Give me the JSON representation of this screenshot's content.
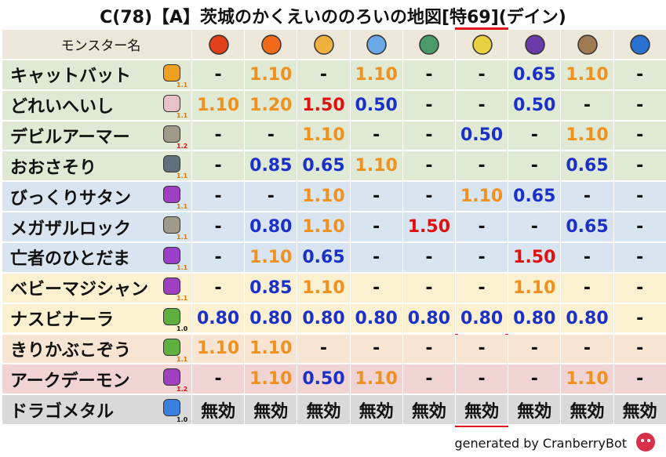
{
  "header": {
    "title": "C(78)【A】茨城のかくえいののろいの地図[特69](デイン)"
  },
  "table": {
    "name_header": "モンスター名",
    "rows": [
      {
        "name": "キャットバット",
        "level": "1.1",
        "cells": [
          "-",
          "1.10",
          "-",
          "1.10",
          "-",
          "-",
          "0.65",
          "1.10",
          "-"
        ]
      },
      {
        "name": "どれいへいし",
        "level": "1.1",
        "cells": [
          "1.10",
          "1.20",
          "1.50",
          "0.50",
          "-",
          "-",
          "0.50",
          "-",
          "-"
        ]
      },
      {
        "name": "デビルアーマー",
        "level": "1.2",
        "cells": [
          "-",
          "-",
          "1.10",
          "-",
          "-",
          "0.50",
          "-",
          "1.10",
          "-"
        ]
      },
      {
        "name": "おおさそり",
        "level": "1.1",
        "cells": [
          "-",
          "0.85",
          "0.65",
          "1.10",
          "-",
          "-",
          "-",
          "0.65",
          "-"
        ]
      },
      {
        "name": "びっくりサタン",
        "level": "1.1",
        "cells": [
          "-",
          "-",
          "1.10",
          "-",
          "-",
          "1.10",
          "0.65",
          "-",
          "-"
        ]
      },
      {
        "name": "メガザルロック",
        "level": "1.1",
        "cells": [
          "-",
          "0.80",
          "1.10",
          "-",
          "1.50",
          "-",
          "-",
          "0.65",
          "-"
        ]
      },
      {
        "name": "亡者のひとだま",
        "level": "1.1",
        "cells": [
          "-",
          "1.10",
          "0.65",
          "-",
          "-",
          "-",
          "1.50",
          "-",
          "-"
        ]
      },
      {
        "name": "ベビーマジシャン",
        "level": "1.1",
        "cells": [
          "-",
          "0.85",
          "1.10",
          "-",
          "-",
          "-",
          "1.10",
          "-",
          "-"
        ]
      },
      {
        "name": "ナスビナーラ",
        "level": "1.0",
        "cells": [
          "0.80",
          "0.80",
          "0.80",
          "0.80",
          "0.80",
          "0.80",
          "0.80",
          "0.80",
          "-"
        ]
      },
      {
        "name": "きりかぶこぞう",
        "level": "1.1",
        "cells": [
          "1.10",
          "1.10",
          "-",
          "-",
          "-",
          "-",
          "-",
          "-",
          "-"
        ]
      },
      {
        "name": "アークデーモン",
        "level": "1.2",
        "cells": [
          "-",
          "1.10",
          "0.50",
          "1.10",
          "-",
          "-",
          "-",
          "1.10",
          "-"
        ]
      },
      {
        "name": "ドラゴメタル",
        "level": "1.0",
        "cells": [
          "無効",
          "無効",
          "無効",
          "無効",
          "無効",
          "無効",
          "無効",
          "無効",
          "無効"
        ]
      }
    ]
  },
  "footer": {
    "text": "generated by CranberryBot"
  }
}
